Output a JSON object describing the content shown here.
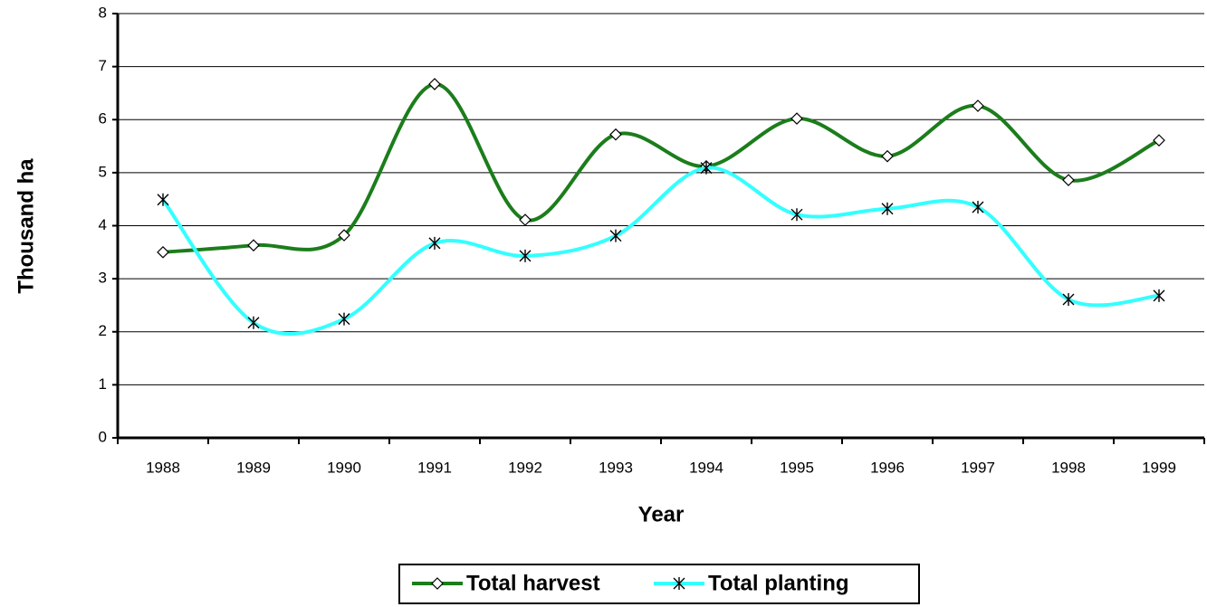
{
  "chart_data": {
    "type": "line",
    "y_label": "Thousand ha",
    "x_label": "Year",
    "categories": [
      "1988",
      "1989",
      "1990",
      "1991",
      "1992",
      "1993",
      "1994",
      "1995",
      "1996",
      "1997",
      "1998",
      "1999"
    ],
    "series": [
      {
        "name": "Total harvest",
        "color": "#1b7d1b",
        "marker": "diamond",
        "values": [
          3.5,
          3.63,
          3.82,
          6.67,
          4.11,
          5.72,
          5.12,
          6.02,
          5.31,
          6.26,
          4.86,
          5.61
        ]
      },
      {
        "name": "Total planting",
        "color": "#33ffff",
        "marker": "asterisk",
        "values": [
          4.49,
          2.17,
          2.24,
          3.67,
          3.43,
          3.81,
          5.09,
          4.21,
          4.32,
          4.35,
          2.61,
          2.68
        ]
      }
    ],
    "ylim": [
      0,
      8
    ],
    "yticks": [
      0,
      1,
      2,
      3,
      4,
      5,
      6,
      7,
      8
    ],
    "grid": true,
    "smooth": true,
    "legend": "bottom"
  }
}
